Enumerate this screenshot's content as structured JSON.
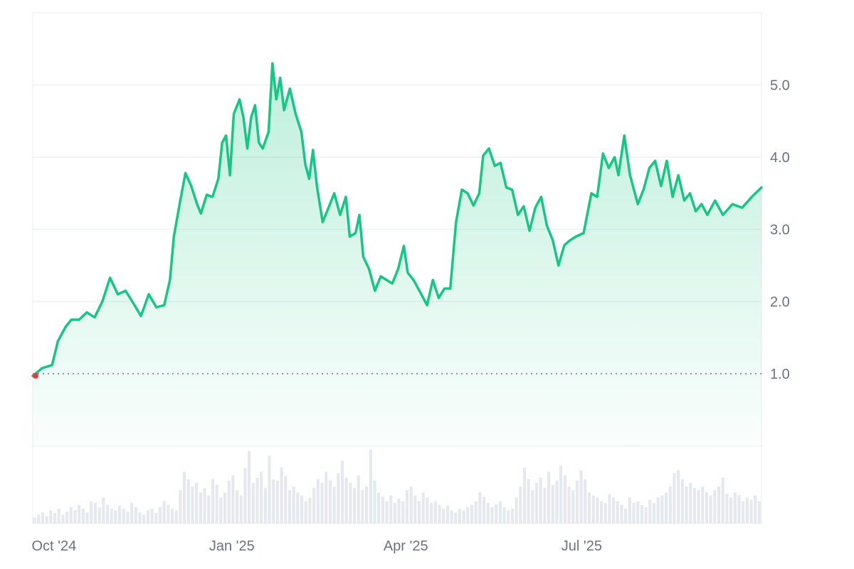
{
  "chart_data": {
    "type": "area",
    "title": "",
    "xlabel": "",
    "ylabel": "",
    "x_ticks": [
      {
        "date": "2024-10-01",
        "label": "Oct '24"
      },
      {
        "date": "2025-01-01",
        "label": "Jan '25"
      },
      {
        "date": "2025-04-01",
        "label": "Apr '25"
      },
      {
        "date": "2025-07-01",
        "label": "Jul '25"
      }
    ],
    "x_range": [
      "2024-09-20",
      "2025-10-02"
    ],
    "y_ticks": [
      1.0,
      2.0,
      3.0,
      4.0,
      5.0
    ],
    "y_tick_labels": [
      "1.0",
      "2.0",
      "3.0",
      "4.0",
      "5.0"
    ],
    "ylim": [
      -0.0,
      6.0
    ],
    "baseline": 1.0,
    "grid": true,
    "colors": {
      "line": "#16c784",
      "area_top": "#16c784",
      "baseline_marker": "#ea3943",
      "volume": "#e5e9ef",
      "grid": "#eef0f3"
    },
    "series": [
      {
        "values": [
          [
            "2024-09-20",
            0.97
          ],
          [
            "2024-09-25",
            1.08
          ],
          [
            "2024-09-30",
            1.12
          ],
          [
            "2024-10-03",
            1.45
          ],
          [
            "2024-10-07",
            1.65
          ],
          [
            "2024-10-10",
            1.75
          ],
          [
            "2024-10-14",
            1.75
          ],
          [
            "2024-10-18",
            1.85
          ],
          [
            "2024-10-22",
            1.78
          ],
          [
            "2024-10-26",
            2.0
          ],
          [
            "2024-10-30",
            2.33
          ],
          [
            "2024-11-03",
            2.1
          ],
          [
            "2024-11-07",
            2.15
          ],
          [
            "2024-11-11",
            1.98
          ],
          [
            "2024-11-15",
            1.8
          ],
          [
            "2024-11-19",
            2.1
          ],
          [
            "2024-11-23",
            1.92
          ],
          [
            "2024-11-27",
            1.95
          ],
          [
            "2024-11-30",
            2.3
          ],
          [
            "2024-12-02",
            2.9
          ],
          [
            "2024-12-05",
            3.35
          ],
          [
            "2024-12-08",
            3.78
          ],
          [
            "2024-12-11",
            3.6
          ],
          [
            "2024-12-14",
            3.35
          ],
          [
            "2024-12-16",
            3.22
          ],
          [
            "2024-12-19",
            3.48
          ],
          [
            "2024-12-22",
            3.45
          ],
          [
            "2024-12-25",
            3.7
          ],
          [
            "2024-12-27",
            4.2
          ],
          [
            "2024-12-29",
            4.3
          ],
          [
            "2024-12-31",
            3.75
          ],
          [
            "2025-01-02",
            4.6
          ],
          [
            "2025-01-05",
            4.8
          ],
          [
            "2025-01-07",
            4.55
          ],
          [
            "2025-01-09",
            4.12
          ],
          [
            "2025-01-11",
            4.55
          ],
          [
            "2025-01-13",
            4.72
          ],
          [
            "2025-01-15",
            4.2
          ],
          [
            "2025-01-17",
            4.12
          ],
          [
            "2025-01-20",
            4.35
          ],
          [
            "2025-01-22",
            5.3
          ],
          [
            "2025-01-24",
            4.8
          ],
          [
            "2025-01-26",
            5.1
          ],
          [
            "2025-01-28",
            4.65
          ],
          [
            "2025-01-31",
            4.95
          ],
          [
            "2025-02-03",
            4.6
          ],
          [
            "2025-02-06",
            4.35
          ],
          [
            "2025-02-08",
            3.9
          ],
          [
            "2025-02-10",
            3.7
          ],
          [
            "2025-02-12",
            4.1
          ],
          [
            "2025-02-14",
            3.6
          ],
          [
            "2025-02-17",
            3.1
          ],
          [
            "2025-02-20",
            3.3
          ],
          [
            "2025-02-23",
            3.5
          ],
          [
            "2025-02-26",
            3.2
          ],
          [
            "2025-03-01",
            3.45
          ],
          [
            "2025-03-03",
            2.9
          ],
          [
            "2025-03-06",
            2.95
          ],
          [
            "2025-03-08",
            3.2
          ],
          [
            "2025-03-10",
            2.62
          ],
          [
            "2025-03-13",
            2.45
          ],
          [
            "2025-03-16",
            2.15
          ],
          [
            "2025-03-19",
            2.35
          ],
          [
            "2025-03-22",
            2.3
          ],
          [
            "2025-03-25",
            2.25
          ],
          [
            "2025-03-28",
            2.45
          ],
          [
            "2025-03-31",
            2.77
          ],
          [
            "2025-04-02",
            2.4
          ],
          [
            "2025-04-05",
            2.3
          ],
          [
            "2025-04-09",
            2.1
          ],
          [
            "2025-04-12",
            1.95
          ],
          [
            "2025-04-15",
            2.3
          ],
          [
            "2025-04-18",
            2.05
          ],
          [
            "2025-04-21",
            2.18
          ],
          [
            "2025-04-24",
            2.18
          ],
          [
            "2025-04-27",
            3.1
          ],
          [
            "2025-04-30",
            3.55
          ],
          [
            "2025-05-03",
            3.5
          ],
          [
            "2025-05-06",
            3.33
          ],
          [
            "2025-05-09",
            3.5
          ],
          [
            "2025-05-11",
            4.02
          ],
          [
            "2025-05-14",
            4.12
          ],
          [
            "2025-05-17",
            3.88
          ],
          [
            "2025-05-20",
            3.92
          ],
          [
            "2025-05-23",
            3.58
          ],
          [
            "2025-05-26",
            3.55
          ],
          [
            "2025-05-29",
            3.2
          ],
          [
            "2025-06-01",
            3.32
          ],
          [
            "2025-06-04",
            2.98
          ],
          [
            "2025-06-07",
            3.3
          ],
          [
            "2025-06-10",
            3.45
          ],
          [
            "2025-06-13",
            3.05
          ],
          [
            "2025-06-16",
            2.85
          ],
          [
            "2025-06-19",
            2.5
          ],
          [
            "2025-06-22",
            2.78
          ],
          [
            "2025-06-25",
            2.85
          ],
          [
            "2025-06-28",
            2.9
          ],
          [
            "2025-07-02",
            2.95
          ],
          [
            "2025-07-06",
            3.5
          ],
          [
            "2025-07-09",
            3.45
          ],
          [
            "2025-07-12",
            4.05
          ],
          [
            "2025-07-15",
            3.85
          ],
          [
            "2025-07-18",
            4.0
          ],
          [
            "2025-07-20",
            3.75
          ],
          [
            "2025-07-23",
            4.3
          ],
          [
            "2025-07-26",
            3.75
          ],
          [
            "2025-07-30",
            3.35
          ],
          [
            "2025-08-02",
            3.55
          ],
          [
            "2025-08-05",
            3.85
          ],
          [
            "2025-08-08",
            3.95
          ],
          [
            "2025-08-11",
            3.6
          ],
          [
            "2025-08-14",
            3.95
          ],
          [
            "2025-08-17",
            3.45
          ],
          [
            "2025-08-20",
            3.75
          ],
          [
            "2025-08-23",
            3.4
          ],
          [
            "2025-08-26",
            3.5
          ],
          [
            "2025-08-29",
            3.25
          ],
          [
            "2025-09-01",
            3.35
          ],
          [
            "2025-09-04",
            3.2
          ],
          [
            "2025-09-08",
            3.4
          ],
          [
            "2025-09-12",
            3.2
          ],
          [
            "2025-09-17",
            3.35
          ],
          [
            "2025-09-22",
            3.3
          ],
          [
            "2025-09-27",
            3.45
          ],
          [
            "2025-10-02",
            3.58
          ]
        ]
      }
    ],
    "volume": {
      "note_values_relative": true,
      "values": [
        0.08,
        0.12,
        0.15,
        0.1,
        0.18,
        0.14,
        0.2,
        0.12,
        0.16,
        0.22,
        0.18,
        0.25,
        0.2,
        0.15,
        0.3,
        0.28,
        0.22,
        0.35,
        0.25,
        0.2,
        0.18,
        0.24,
        0.2,
        0.16,
        0.28,
        0.22,
        0.15,
        0.12,
        0.18,
        0.2,
        0.14,
        0.22,
        0.3,
        0.25,
        0.2,
        0.18,
        0.45,
        0.7,
        0.6,
        0.5,
        0.55,
        0.42,
        0.48,
        0.38,
        0.6,
        0.52,
        0.35,
        0.42,
        0.58,
        0.65,
        0.45,
        0.38,
        0.75,
        0.98,
        0.55,
        0.62,
        0.7,
        0.48,
        0.92,
        0.6,
        0.58,
        0.76,
        0.64,
        0.45,
        0.5,
        0.42,
        0.38,
        0.3,
        0.35,
        0.48,
        0.6,
        0.55,
        0.7,
        0.58,
        0.5,
        0.68,
        0.85,
        0.62,
        0.55,
        0.48,
        0.65,
        0.45,
        0.5,
        1.0,
        0.58,
        0.42,
        0.36,
        0.3,
        0.38,
        0.28,
        0.34,
        0.3,
        0.45,
        0.5,
        0.38,
        0.3,
        0.42,
        0.35,
        0.28,
        0.3,
        0.25,
        0.2,
        0.24,
        0.18,
        0.15,
        0.2,
        0.18,
        0.22,
        0.25,
        0.3,
        0.42,
        0.36,
        0.28,
        0.22,
        0.26,
        0.3,
        0.22,
        0.18,
        0.2,
        0.35,
        0.5,
        0.75,
        0.6,
        0.45,
        0.55,
        0.62,
        0.48,
        0.7,
        0.52,
        0.58,
        0.78,
        0.65,
        0.5,
        0.45,
        0.58,
        0.72,
        0.6,
        0.42,
        0.38,
        0.35,
        0.3,
        0.28,
        0.4,
        0.35,
        0.3,
        0.25,
        0.2,
        0.35,
        0.28,
        0.3,
        0.25,
        0.22,
        0.32,
        0.28,
        0.35,
        0.38,
        0.42,
        0.5,
        0.68,
        0.72,
        0.6,
        0.5,
        0.55,
        0.48,
        0.45,
        0.5,
        0.42,
        0.38,
        0.45,
        0.5,
        0.62,
        0.4,
        0.35,
        0.42,
        0.38,
        0.3,
        0.35,
        0.32,
        0.38,
        0.3
      ]
    }
  }
}
